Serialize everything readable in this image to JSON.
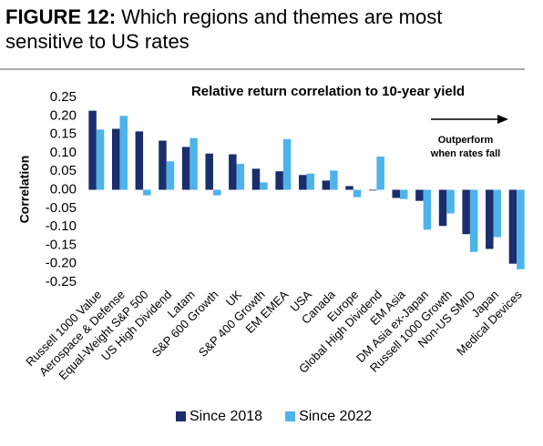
{
  "chart_data": {
    "type": "bar",
    "figure_label": "FIGURE 12:",
    "title": "Which regions and themes are most sensitive to US rates",
    "subtitle": "Relative return correlation to 10-year yield",
    "annotation": [
      "Outperform",
      "when rates fall"
    ],
    "y_label": "Correlation",
    "categories": [
      "Russell 1000 Value",
      "Aerospace & Defense",
      "Equal-Weight S&P 500",
      "US High Dividend",
      "Latam",
      "S&P 600 Growth",
      "UK",
      "S&P 400 Growth",
      "EM EMEA",
      "USA",
      "Canada",
      "Europe",
      "Global High Dividend",
      "EM Asia",
      "DM Asia ex-Japan",
      "Russell 1000 Growth",
      "Non-US SMID",
      "Japan",
      "Medical Devices"
    ],
    "series": [
      {
        "name": "Since 2018",
        "color": "#1b2d6b",
        "values": [
          0.214,
          0.165,
          0.158,
          0.133,
          0.116,
          0.098,
          0.096,
          0.057,
          0.05,
          0.04,
          0.025,
          0.01,
          -0.002,
          -0.022,
          -0.03,
          -0.098,
          -0.12,
          -0.16,
          -0.2
        ]
      },
      {
        "name": "Since 2022",
        "color": "#4db3ea",
        "values": [
          0.163,
          0.2,
          -0.015,
          0.077,
          0.14,
          -0.015,
          0.07,
          0.02,
          0.137,
          0.044,
          0.052,
          -0.02,
          0.09,
          -0.025,
          -0.108,
          -0.064,
          -0.168,
          -0.128,
          -0.215
        ]
      }
    ],
    "ylim": [
      -0.25,
      0.25
    ],
    "yticks": [
      0.25,
      {
        "value": 0.2,
        "label": "0.20"
      },
      0.15,
      {
        "value": 0.1,
        "label": "0.10"
      },
      0.05,
      {
        "value": 0,
        "label": "0.00"
      },
      -0.05,
      {
        "value": -0.1,
        "label": "-0.10"
      },
      -0.15,
      {
        "value": -0.2,
        "label": "-0.20"
      },
      -0.25
    ],
    "legend": "bottom"
  }
}
